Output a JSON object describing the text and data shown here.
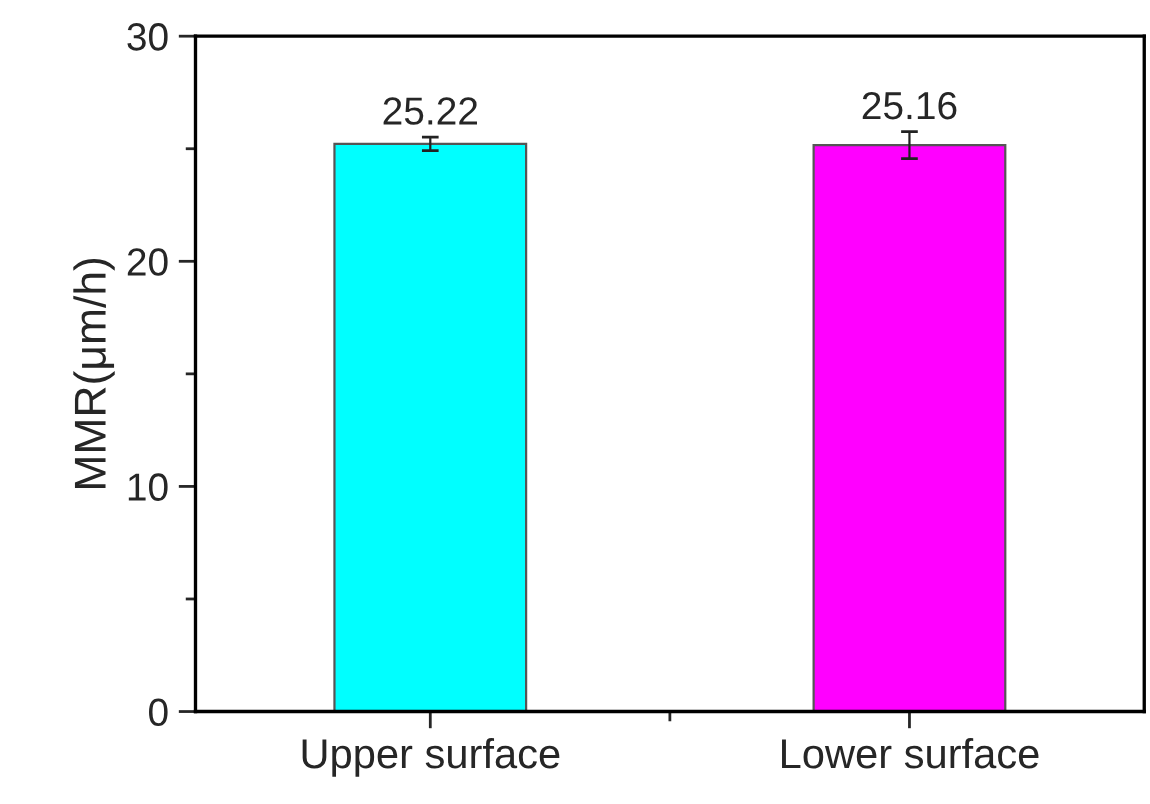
{
  "chart_data": {
    "type": "bar",
    "ylabel": "MMR(μm/h)",
    "categories": [
      "Upper surface",
      "Lower surface"
    ],
    "values": [
      25.22,
      25.16
    ],
    "errors": [
      0.3,
      0.6
    ],
    "colors": [
      "#00ffff",
      "#ff00ff"
    ],
    "ylim": [
      0,
      30
    ],
    "yticks": [
      0,
      {
        "value": 5,
        "label": null
      },
      10,
      {
        "value": 15,
        "label": null
      },
      20,
      {
        "value": 25,
        "label": null
      },
      30
    ],
    "data_labels": true,
    "grid": false,
    "legend": false
  }
}
